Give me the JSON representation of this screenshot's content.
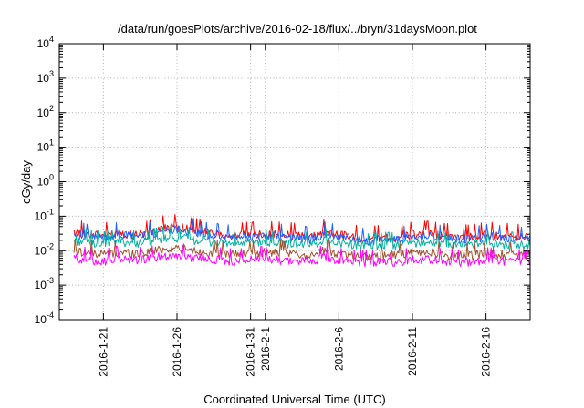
{
  "chart_data": {
    "type": "line",
    "title": "/data/run/goesPlots/archive/2016-02-18/flux/../bryn/31daysMoon.plot",
    "xlabel": "Coordinated Universal Time (UTC)",
    "ylabel": "cGy/day",
    "yscale": "log",
    "ylim": [
      0.0001,
      10000
    ],
    "xlim": [
      "2016-01-18",
      "2016-02-19"
    ],
    "grid": true,
    "y_ticks": [
      {
        "value": 0.0001,
        "base": "10",
        "exp": "-4"
      },
      {
        "value": 0.001,
        "base": "10",
        "exp": "-3"
      },
      {
        "value": 0.01,
        "base": "10",
        "exp": "-2"
      },
      {
        "value": 0.1,
        "base": "10",
        "exp": "-1"
      },
      {
        "value": 1,
        "base": "10",
        "exp": "0"
      },
      {
        "value": 10,
        "base": "10",
        "exp": "1"
      },
      {
        "value": 100,
        "base": "10",
        "exp": "2"
      },
      {
        "value": 1000,
        "base": "10",
        "exp": "3"
      },
      {
        "value": 10000,
        "base": "10",
        "exp": "4"
      }
    ],
    "x_ticks": [
      {
        "date": "2016-01-21",
        "label": "2016-1-21"
      },
      {
        "date": "2016-01-26",
        "label": "2016-1-26"
      },
      {
        "date": "2016-01-31",
        "label": "2016-1-31"
      },
      {
        "date": "2016-02-01",
        "label": "2016-2-1"
      },
      {
        "date": "2016-02-06",
        "label": "2016-2-6"
      },
      {
        "date": "2016-02-11",
        "label": "2016-2-11"
      },
      {
        "date": "2016-02-16",
        "label": "2016-2-16"
      }
    ],
    "x": [
      "2016-01-19",
      "2016-01-20",
      "2016-01-21",
      "2016-01-22",
      "2016-01-23",
      "2016-01-24",
      "2016-01-25",
      "2016-01-26",
      "2016-01-27",
      "2016-01-28",
      "2016-01-29",
      "2016-01-30",
      "2016-01-31",
      "2016-02-01",
      "2016-02-02",
      "2016-02-03",
      "2016-02-04",
      "2016-02-05",
      "2016-02-06",
      "2016-02-07",
      "2016-02-08",
      "2016-02-09",
      "2016-02-10",
      "2016-02-11",
      "2016-02-12",
      "2016-02-13",
      "2016-02-14",
      "2016-02-15",
      "2016-02-16",
      "2016-02-17",
      "2016-02-18",
      "2016-02-19"
    ],
    "series": [
      {
        "color": "#ff0000",
        "values": [
          0.035,
          0.03,
          0.028,
          0.034,
          0.03,
          0.032,
          0.045,
          0.05,
          0.04,
          0.035,
          0.03,
          0.028,
          0.03,
          0.032,
          0.03,
          0.028,
          0.025,
          0.035,
          0.03,
          0.025,
          0.022,
          0.026,
          0.024,
          0.03,
          0.032,
          0.028,
          0.026,
          0.025,
          0.03,
          0.028,
          0.026,
          0.025
        ]
      },
      {
        "color": "#2060ff",
        "values": [
          0.03,
          0.026,
          0.024,
          0.029,
          0.026,
          0.028,
          0.038,
          0.042,
          0.035,
          0.03,
          0.026,
          0.024,
          0.026,
          0.028,
          0.026,
          0.024,
          0.022,
          0.03,
          0.026,
          0.022,
          0.019,
          0.022,
          0.021,
          0.026,
          0.028,
          0.024,
          0.022,
          0.022,
          0.026,
          0.024,
          0.022,
          0.021
        ]
      },
      {
        "color": "#00b0a0",
        "values": [
          0.02,
          0.018,
          0.016,
          0.019,
          0.017,
          0.018,
          0.022,
          0.024,
          0.021,
          0.019,
          0.017,
          0.016,
          0.017,
          0.018,
          0.017,
          0.016,
          0.015,
          0.02,
          0.017,
          0.015,
          0.014,
          0.015,
          0.015,
          0.017,
          0.018,
          0.016,
          0.015,
          0.015,
          0.017,
          0.016,
          0.015,
          0.015
        ]
      },
      {
        "color": "#a0522d",
        "values": [
          0.01,
          0.009,
          0.008,
          0.009,
          0.0085,
          0.009,
          0.011,
          0.012,
          0.01,
          0.009,
          0.0085,
          0.008,
          0.0085,
          0.009,
          0.0085,
          0.008,
          0.0075,
          0.01,
          0.0085,
          0.0075,
          0.007,
          0.0075,
          0.0075,
          0.0085,
          0.009,
          0.008,
          0.0075,
          0.0075,
          0.0085,
          0.008,
          0.0075,
          0.0075
        ]
      },
      {
        "color": "#ff00ff",
        "values": [
          0.006,
          0.0055,
          0.005,
          0.006,
          0.0055,
          0.0058,
          0.007,
          0.0075,
          0.0065,
          0.006,
          0.0055,
          0.005,
          0.0055,
          0.006,
          0.0055,
          0.005,
          0.0048,
          0.0065,
          0.0055,
          0.0048,
          0.0045,
          0.0048,
          0.0048,
          0.0055,
          0.0058,
          0.0052,
          0.0048,
          0.0048,
          0.0055,
          0.0052,
          0.0048,
          0.0048
        ]
      }
    ]
  }
}
